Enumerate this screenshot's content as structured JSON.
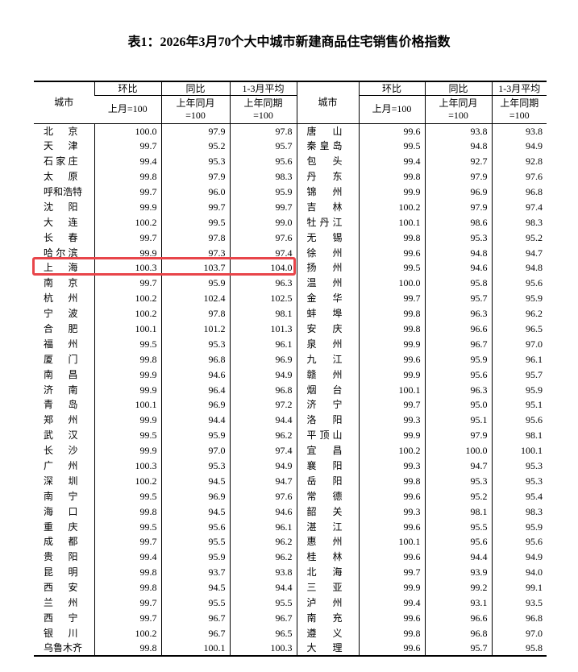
{
  "title": "表1：2026年3月70个大中城市新建商品住宅销售价格指数",
  "table": {
    "header": {
      "city": "城市",
      "groups": [
        {
          "label": "环比",
          "sub": "上月=100"
        },
        {
          "label": "同比",
          "sub": "上年同月=100"
        },
        {
          "label": "1-3月平均",
          "sub": "上年同期=100"
        }
      ]
    },
    "rows": [
      [
        "北京",
        "100.0",
        "97.9",
        "97.8",
        "唐山",
        "99.6",
        "93.8",
        "93.8"
      ],
      [
        "天津",
        "99.7",
        "95.2",
        "95.7",
        "秦皇岛",
        "99.5",
        "94.8",
        "94.9"
      ],
      [
        "石家庄",
        "99.4",
        "95.3",
        "95.6",
        "包头",
        "99.4",
        "92.7",
        "92.8"
      ],
      [
        "太原",
        "99.8",
        "97.9",
        "98.3",
        "丹东",
        "99.8",
        "97.9",
        "97.6"
      ],
      [
        "呼和浩特",
        "99.7",
        "96.0",
        "95.9",
        "锦州",
        "99.9",
        "96.9",
        "96.8"
      ],
      [
        "沈阳",
        "99.9",
        "99.7",
        "99.7",
        "吉林",
        "100.2",
        "97.9",
        "97.4"
      ],
      [
        "大连",
        "100.2",
        "99.5",
        "99.0",
        "牡丹江",
        "100.1",
        "98.6",
        "98.3"
      ],
      [
        "长春",
        "99.7",
        "97.8",
        "97.6",
        "无锡",
        "99.8",
        "95.3",
        "95.2"
      ],
      [
        "哈尔滨",
        "99.9",
        "97.3",
        "97.4",
        "徐州",
        "99.6",
        "94.8",
        "94.7"
      ],
      [
        "上海",
        "100.3",
        "103.7",
        "104.0",
        "扬州",
        "99.5",
        "94.6",
        "94.8"
      ],
      [
        "南京",
        "99.7",
        "95.9",
        "96.3",
        "温州",
        "100.0",
        "95.8",
        "95.6"
      ],
      [
        "杭州",
        "100.2",
        "102.4",
        "102.5",
        "金华",
        "99.7",
        "95.7",
        "95.9"
      ],
      [
        "宁波",
        "100.2",
        "97.8",
        "98.1",
        "蚌埠",
        "99.8",
        "96.3",
        "96.2"
      ],
      [
        "合肥",
        "100.1",
        "101.2",
        "101.3",
        "安庆",
        "99.8",
        "96.6",
        "96.5"
      ],
      [
        "福州",
        "99.5",
        "95.3",
        "96.1",
        "泉州",
        "99.9",
        "96.7",
        "97.0"
      ],
      [
        "厦门",
        "99.8",
        "96.8",
        "96.9",
        "九江",
        "99.6",
        "95.9",
        "96.1"
      ],
      [
        "南昌",
        "99.9",
        "94.6",
        "94.9",
        "赣州",
        "99.9",
        "95.6",
        "95.7"
      ],
      [
        "济南",
        "99.9",
        "96.4",
        "96.8",
        "烟台",
        "100.1",
        "96.3",
        "95.9"
      ],
      [
        "青岛",
        "100.1",
        "96.9",
        "97.2",
        "济宁",
        "99.7",
        "95.0",
        "95.1"
      ],
      [
        "郑州",
        "99.9",
        "94.4",
        "94.4",
        "洛阳",
        "99.3",
        "95.1",
        "95.6"
      ],
      [
        "武汉",
        "99.5",
        "95.9",
        "96.2",
        "平顶山",
        "99.9",
        "97.9",
        "98.1"
      ],
      [
        "长沙",
        "99.9",
        "97.0",
        "97.4",
        "宜昌",
        "100.2",
        "100.0",
        "100.1"
      ],
      [
        "广州",
        "100.3",
        "95.3",
        "94.9",
        "襄阳",
        "99.3",
        "94.7",
        "95.3"
      ],
      [
        "深圳",
        "100.2",
        "94.5",
        "94.7",
        "岳阳",
        "99.8",
        "95.3",
        "95.3"
      ],
      [
        "南宁",
        "99.5",
        "96.9",
        "97.6",
        "常德",
        "99.6",
        "95.2",
        "95.4"
      ],
      [
        "海口",
        "99.8",
        "94.5",
        "94.6",
        "韶关",
        "99.3",
        "98.1",
        "98.3"
      ],
      [
        "重庆",
        "99.5",
        "95.6",
        "96.1",
        "湛江",
        "99.6",
        "95.5",
        "95.9"
      ],
      [
        "成都",
        "99.7",
        "95.5",
        "96.2",
        "惠州",
        "100.1",
        "95.6",
        "95.6"
      ],
      [
        "贵阳",
        "99.4",
        "95.9",
        "96.2",
        "桂林",
        "99.6",
        "94.4",
        "94.9"
      ],
      [
        "昆明",
        "99.8",
        "93.7",
        "93.8",
        "北海",
        "99.7",
        "93.9",
        "94.0"
      ],
      [
        "西安",
        "99.8",
        "94.5",
        "94.4",
        "三亚",
        "99.9",
        "99.2",
        "99.1"
      ],
      [
        "兰州",
        "99.7",
        "95.5",
        "95.5",
        "泸州",
        "99.4",
        "93.1",
        "93.5"
      ],
      [
        "西宁",
        "99.7",
        "96.7",
        "96.7",
        "南充",
        "99.6",
        "96.6",
        "96.8"
      ],
      [
        "银川",
        "100.2",
        "96.7",
        "96.5",
        "遵义",
        "99.8",
        "96.8",
        "97.0"
      ],
      [
        "乌鲁木齐",
        "99.8",
        "100.1",
        "100.3",
        "大理",
        "99.6",
        "95.7",
        "95.8"
      ]
    ]
  }
}
